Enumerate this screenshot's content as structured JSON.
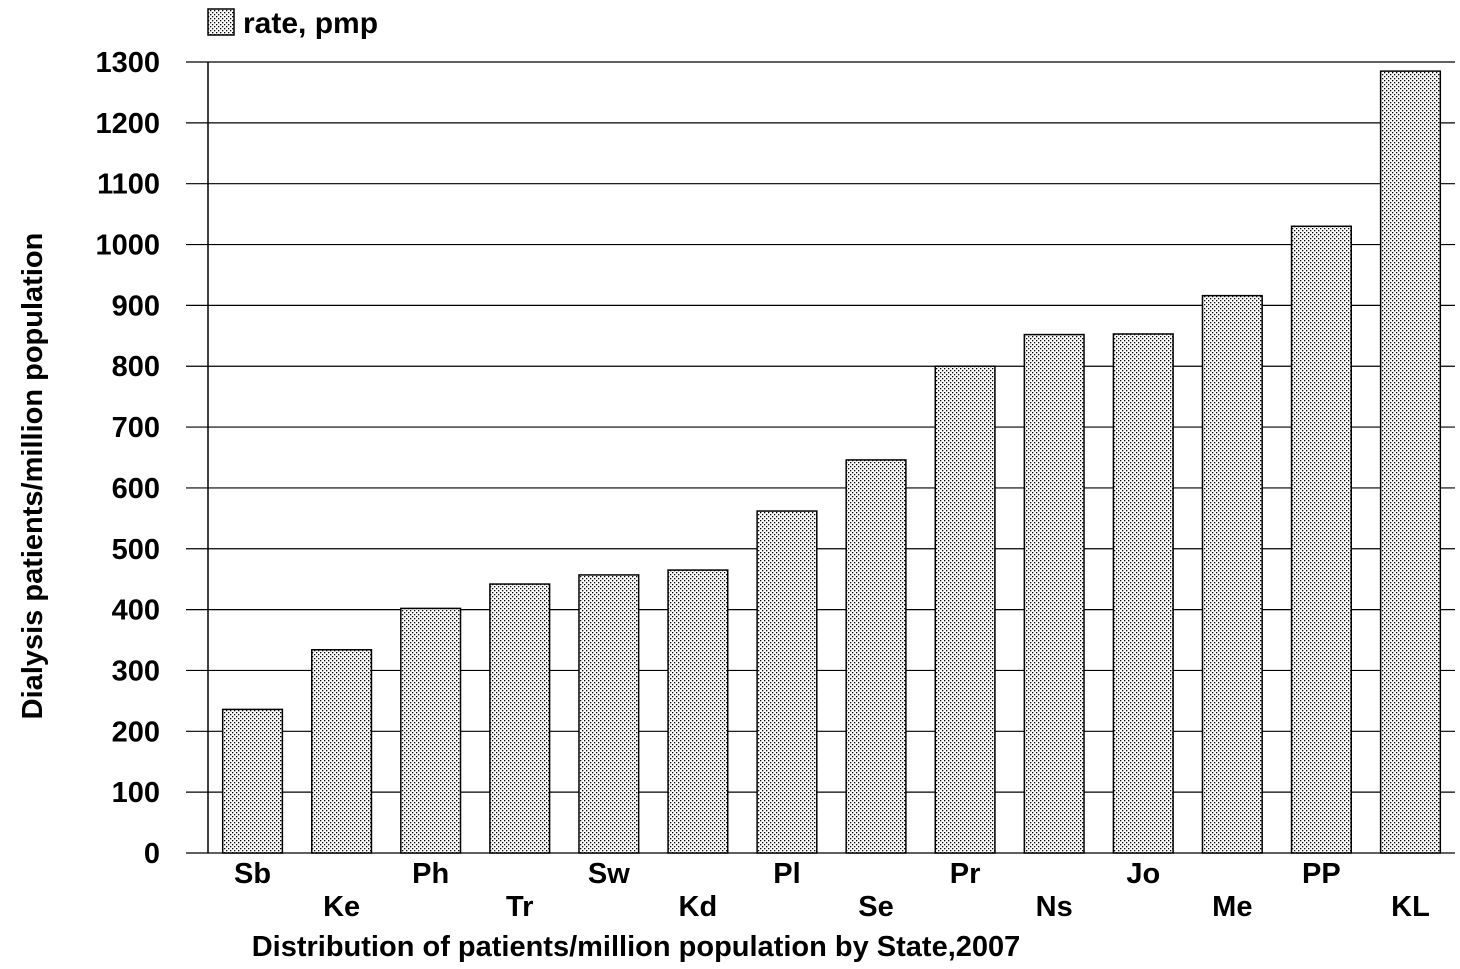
{
  "chart_data": {
    "type": "bar",
    "categories": [
      "Sb",
      "Ke",
      "Ph",
      "Tr",
      "Sw",
      "Kd",
      "Pl",
      "Se",
      "Pr",
      "Ns",
      "Jo",
      "Me",
      "PP",
      "KL"
    ],
    "series": [
      {
        "name": "rate, pmp",
        "values": [
          236,
          334,
          402,
          442,
          457,
          465,
          562,
          646,
          800,
          852,
          853,
          916,
          1030,
          1285
        ]
      }
    ],
    "title": "",
    "xlabel": "Distribution of patients/million population by State,2007",
    "ylabel": "Dialysis patients/million population",
    "ylim": [
      0,
      1300
    ],
    "yticks": [
      0,
      100,
      200,
      300,
      400,
      500,
      600,
      700,
      800,
      900,
      1000,
      1100,
      1200,
      1300
    ],
    "grid": true,
    "legend_position": "top-left",
    "bar_fill": "dotted-pattern",
    "colors": {
      "bar_fill": "#ffffff",
      "bar_dots": "#000000",
      "bar_edge": "#000000",
      "grid": "#000000"
    }
  }
}
